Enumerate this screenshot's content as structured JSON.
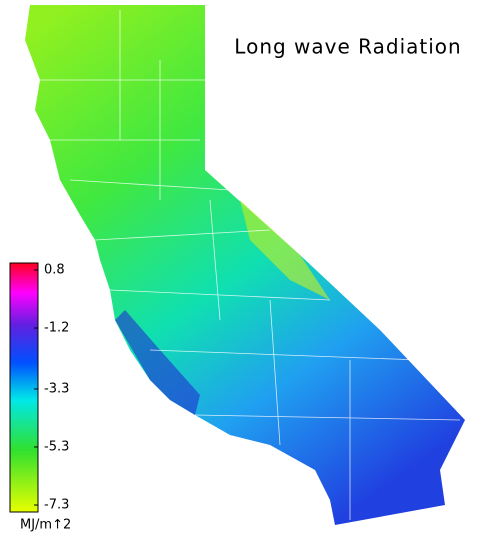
{
  "title": "Long wave Radiation",
  "colorbar": {
    "lim": [
      -7.3,
      0.8
    ],
    "ticks": [
      0.8,
      -1.2,
      -3.3,
      -5.3,
      -7.3
    ],
    "label": "MJ/m↑2"
  }
}
